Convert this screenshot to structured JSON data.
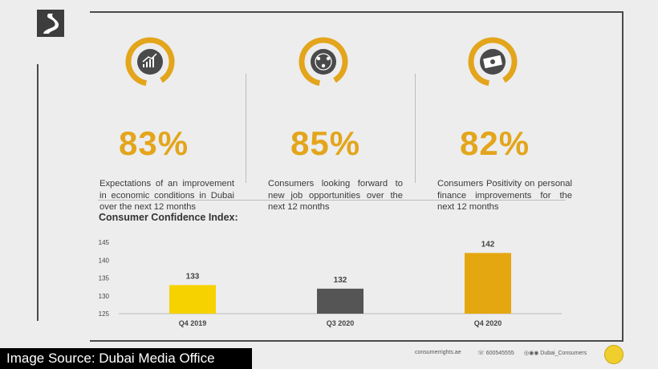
{
  "stats": [
    {
      "value": "83%",
      "icon": "growth-chart-icon",
      "description": "Expectations of an improvement in economic conditions in Dubai over the next 12 months"
    },
    {
      "value": "85%",
      "icon": "people-network-icon",
      "description": "Consumers looking forward to new job opportunities over the next 12 months"
    },
    {
      "value": "82%",
      "icon": "banknote-icon",
      "description": "Consumers Positivity on personal finance improvements for the next 12 months"
    }
  ],
  "chart_data": {
    "type": "bar",
    "title": "Consumer Confidence Index:",
    "categories": [
      "Q4 2019",
      "Q3 2020",
      "Q4 2020"
    ],
    "values": [
      133,
      132,
      142
    ],
    "colors": [
      "#f6d200",
      "#555555",
      "#e5a710"
    ],
    "yticks": [
      125,
      130,
      135,
      140,
      145
    ],
    "ylim": [
      125,
      145
    ],
    "grid": false,
    "xlabel": "",
    "ylabel": ""
  },
  "footer": {
    "website": "consumerrights.ae",
    "phone": "600545555",
    "social": "Dubai_Consumers"
  },
  "source_banner": "Image Source: Dubai Media Office",
  "colors": {
    "accent": "#e3a51c",
    "frame": "#4a4a4a",
    "background": "#ededed"
  }
}
